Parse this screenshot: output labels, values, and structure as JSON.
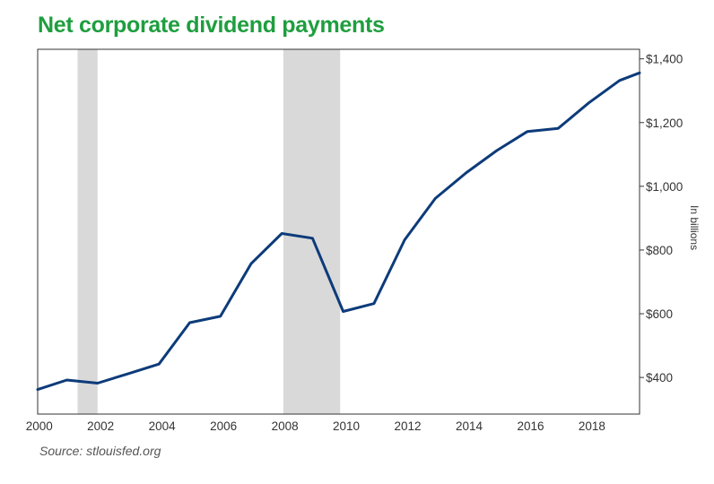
{
  "title": "Net corporate dividend payments",
  "source": "Source: stlouisfed.org",
  "colors": {
    "title": "#1f9e3f",
    "line": "#0d3b7a",
    "recession": "#d9d9d9"
  },
  "chart_data": {
    "type": "line",
    "title": "Net corporate dividend payments",
    "ylabel": "In billions",
    "xlabel": "",
    "xlim": [
      1999.95,
      2019.55
    ],
    "ylim": [
      285,
      1430
    ],
    "grid": false,
    "legend": "none",
    "x_ticks": [
      2000,
      2002,
      2004,
      2006,
      2008,
      2010,
      2012,
      2014,
      2016,
      2018
    ],
    "x_tick_labels": [
      "2000",
      "2002",
      "2004",
      "2006",
      "2008",
      "2010",
      "2012",
      "2014",
      "2016",
      "2018"
    ],
    "y_ticks": [
      400,
      600,
      800,
      1000,
      1200,
      1400
    ],
    "y_tick_labels": [
      "$400",
      "$600",
      "$800",
      "$1,000",
      "$1,200",
      "$1,400"
    ],
    "recession_bands": [
      {
        "start": 2001.25,
        "end": 2001.9
      },
      {
        "start": 2007.95,
        "end": 2009.8
      }
    ],
    "series": [
      {
        "x": [
          1999.95,
          2000.9,
          2001.9,
          2002.9,
          2003.9,
          2004.9,
          2005.9,
          2006.9,
          2007.9,
          2008.9,
          2009.9,
          2010.9,
          2011.9,
          2012.9,
          2013.9,
          2014.9,
          2015.9,
          2016.9,
          2017.9,
          2018.9,
          2019.55
        ],
        "y": [
          362,
          392,
          382,
          412,
          442,
          572,
          592,
          757,
          852,
          837,
          607,
          632,
          832,
          962,
          1042,
          1112,
          1172,
          1182,
          1262,
          1332,
          1356
        ]
      }
    ]
  }
}
